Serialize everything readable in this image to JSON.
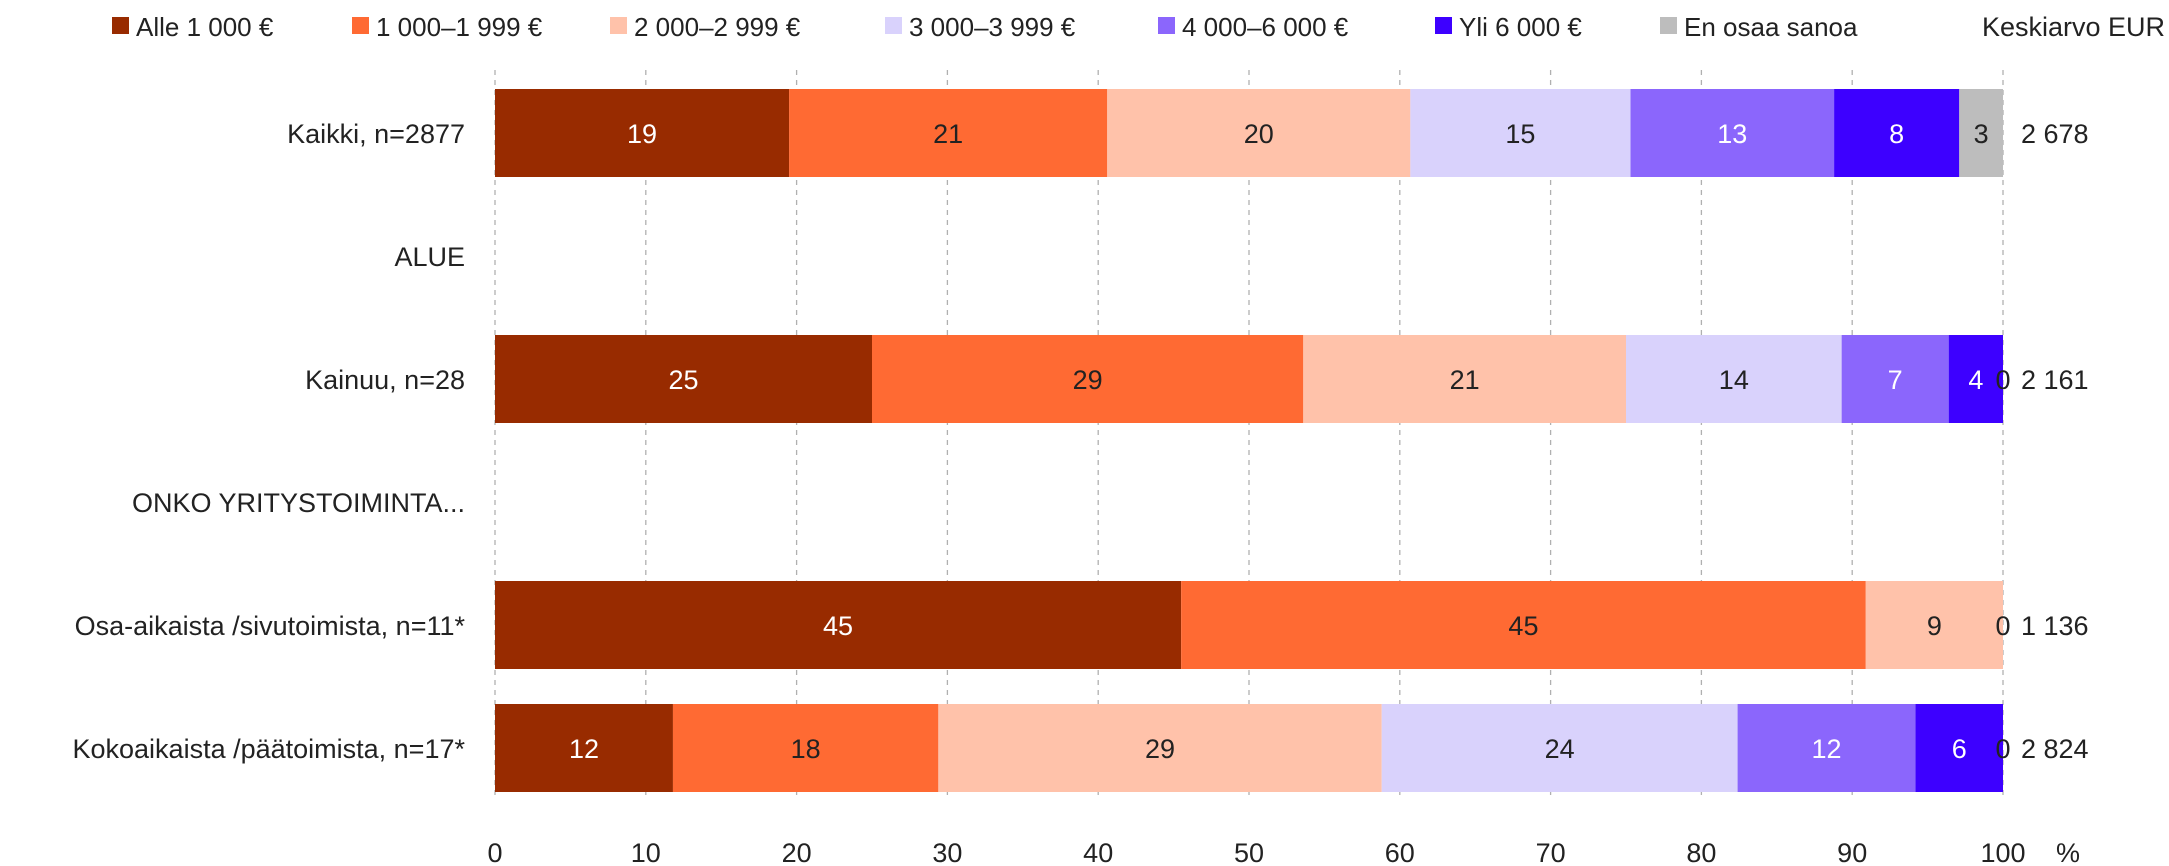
{
  "chart_data": {
    "type": "bar",
    "orientation": "horizontal-stacked-100",
    "legend_position": "top",
    "grid": true,
    "xlim": [
      0,
      100
    ],
    "x_ticks": [
      "0",
      "10",
      "20",
      "30",
      "40",
      "50",
      "60",
      "70",
      "80",
      "90",
      "100"
    ],
    "x_unit": "%",
    "mean_header": "Keskiarvo EUR",
    "rows": [
      {
        "label": "Kaikki, n=2877",
        "values": [
          19.5,
          21.1,
          20.1,
          14.6,
          13.5,
          8.3,
          2.9
        ],
        "data_labels": [
          "19",
          "21",
          "20",
          "15",
          "13",
          "8",
          "3"
        ],
        "mean": "2 678"
      },
      {
        "label": "ALUE",
        "heading": true
      },
      {
        "label": "Kainuu, n=28",
        "values": [
          25.0,
          28.6,
          21.4,
          14.3,
          7.1,
          3.6,
          0.0
        ],
        "data_labels": [
          "25",
          "29",
          "21",
          "14",
          "7",
          "4",
          "0"
        ],
        "mean": "2 161"
      },
      {
        "label": "ONKO YRITYSTOIMINTA...",
        "heading": true
      },
      {
        "label": "Osa-aikaista /sivutoimista, n=11*",
        "values": [
          45.5,
          45.4,
          9.1,
          0,
          0,
          0,
          0.0
        ],
        "data_labels": [
          "45",
          "45",
          "9",
          "",
          "",
          "",
          "0"
        ],
        "mean": "1 136"
      },
      {
        "label": "Kokoaikaista /päätoimista, n=17*",
        "values": [
          11.8,
          17.6,
          29.4,
          23.6,
          11.8,
          5.8,
          0.0
        ],
        "data_labels": [
          "12",
          "18",
          "29",
          "24",
          "12",
          "6",
          "0"
        ],
        "mean": "2 824"
      }
    ],
    "series": [
      {
        "name": "Alle 1 000 €",
        "color": "#982B00",
        "label_color": "#ffffff"
      },
      {
        "name": "1 000–1 999 €",
        "color": "#FF6A33",
        "label_color": "#222222"
      },
      {
        "name": "2 000–2 999 €",
        "color": "#FFC2AA",
        "label_color": "#222222"
      },
      {
        "name": "3 000–3 999 €",
        "color": "#D9D2FC",
        "label_color": "#222222"
      },
      {
        "name": "4 000–6 000 €",
        "color": "#8B66FC",
        "label_color": "#ffffff"
      },
      {
        "name": "Yli 6 000 €",
        "color": "#3D00FF",
        "label_color": "#ffffff"
      },
      {
        "name": "En osaa sanoa",
        "color": "#BDBDBD",
        "label_color": "#222222"
      }
    ]
  }
}
